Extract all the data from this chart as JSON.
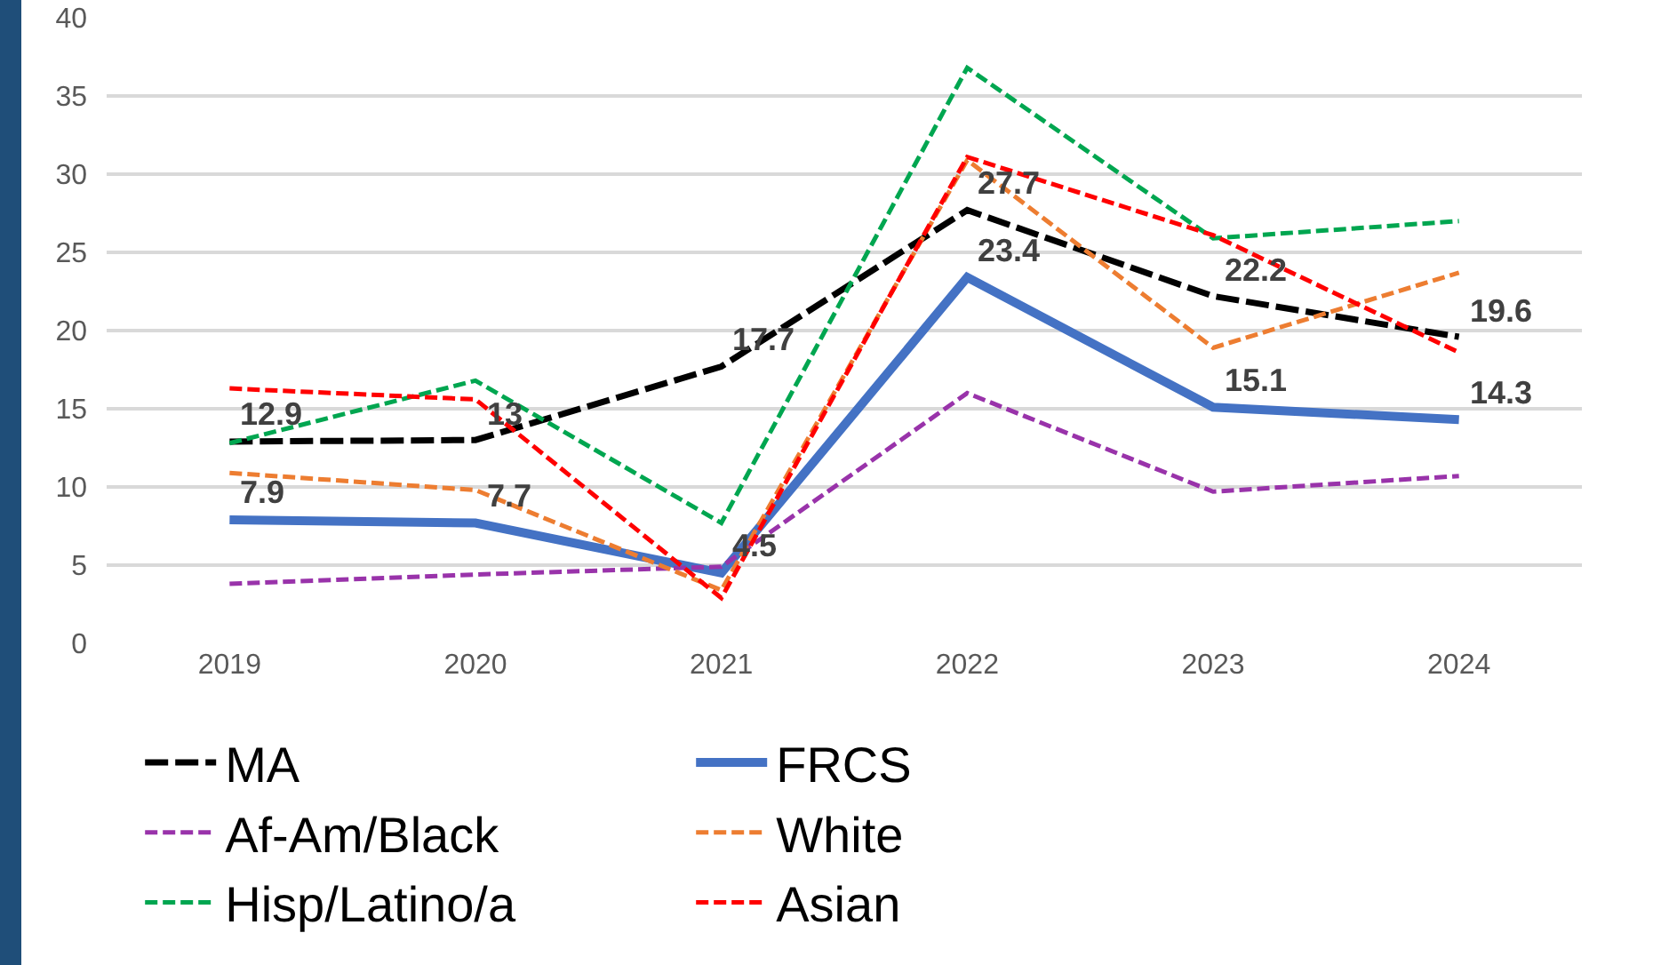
{
  "chart_data": {
    "type": "line",
    "categories": [
      "2019",
      "2020",
      "2021",
      "2022",
      "2023",
      "2024"
    ],
    "ylim": [
      0,
      40
    ],
    "yticks": [
      0,
      5,
      10,
      15,
      20,
      25,
      30,
      35,
      40
    ],
    "grid": "y",
    "legend": "bottom",
    "marker": "none",
    "series": [
      {
        "name": "MA",
        "color": "#000000",
        "line_style": "dashed",
        "values": [
          12.9,
          13,
          17.7,
          27.7,
          22.2,
          19.6
        ],
        "value_labels": [
          "12.9",
          "13",
          "17.7",
          "27.7",
          "22.2",
          "19.6"
        ]
      },
      {
        "name": "FRCS",
        "color": "#4472c4",
        "line_style": "solid",
        "values": [
          7.9,
          7.7,
          4.5,
          23.4,
          15.1,
          14.3
        ],
        "value_labels": [
          "7.9",
          "7.7",
          "4.5",
          "23.4",
          "15.1",
          "14.3"
        ]
      },
      {
        "name": "Af-Am/Black",
        "color": "#9933aa",
        "line_style": "dashed",
        "values": [
          3.8,
          4.4,
          4.9,
          16.0,
          9.7,
          10.7
        ]
      },
      {
        "name": "White",
        "color": "#ed7d31",
        "line_style": "dashed",
        "values": [
          10.9,
          9.8,
          3.4,
          30.9,
          18.9,
          23.7
        ]
      },
      {
        "name": "Hisp/Latino/a",
        "color": "#00a650",
        "line_style": "dashed",
        "values": [
          12.8,
          16.8,
          7.7,
          36.8,
          25.9,
          27.0
        ]
      },
      {
        "name": "Asian",
        "color": "#ff0000",
        "line_style": "dashed",
        "values": [
          16.3,
          15.6,
          2.9,
          31.1,
          26.1,
          18.6
        ]
      }
    ]
  }
}
